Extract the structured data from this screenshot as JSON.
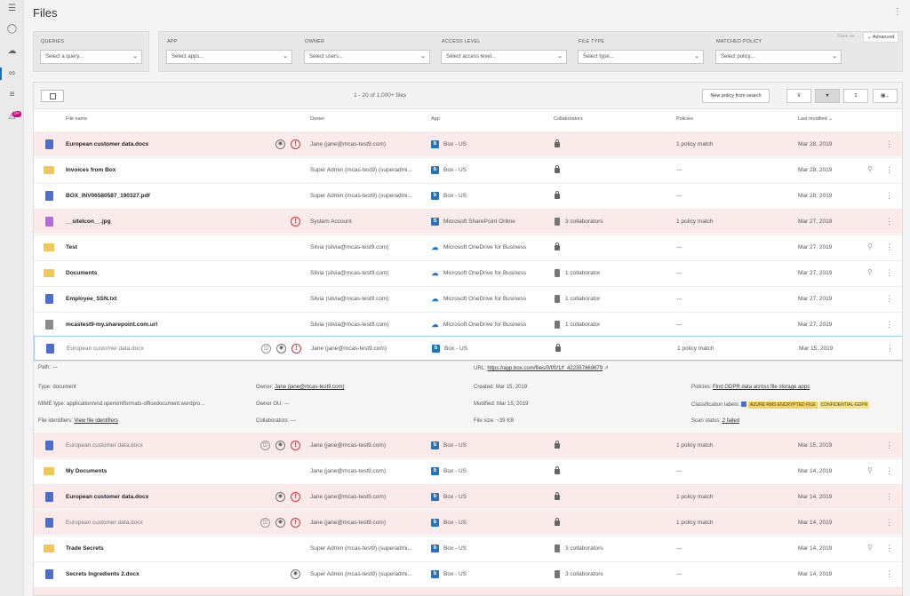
{
  "page": {
    "title": "Files"
  },
  "filters": {
    "queries": {
      "label": "QUERIES",
      "value": "Select a query..."
    },
    "app": {
      "label": "APP",
      "value": "Select apps..."
    },
    "owner": {
      "label": "OWNER",
      "value": "Select users..."
    },
    "access": {
      "label": "ACCESS LEVEL",
      "value": "Select access level..."
    },
    "filetype": {
      "label": "FILE TYPE",
      "value": "Select type..."
    },
    "policy": {
      "label": "MATCHED POLICY",
      "value": "Select policy..."
    },
    "save_as": "Save as",
    "advanced": "Advanced"
  },
  "toolbar": {
    "count": "1 - 20 of 1,000+ files",
    "new_policy": "New policy from search"
  },
  "headers": {
    "file_name": "File name",
    "owner": "Owner",
    "app": "App",
    "collaborators": "Collaborators",
    "policies": "Policies",
    "last_modified": "Last modified"
  },
  "rows": [
    {
      "name": "European customer data.docx",
      "owner": "Jane (jane@mcas-test9.com)",
      "app": "Box - US",
      "collab": "",
      "policies": "1 policy match",
      "modified": "Mar 28, 2019"
    },
    {
      "name": "Invoices from Box",
      "owner": "Super Admin (mcas-test9) (superadmi...",
      "app": "Box - US",
      "collab": "",
      "policies": "---",
      "modified": "Mar 28, 2019"
    },
    {
      "name": "BOX_INV06580587_190327.pdf",
      "owner": "Super Admin (mcas-test9) (superadmi...",
      "app": "Box - US",
      "collab": "",
      "policies": "---",
      "modified": "Mar 28, 2019"
    },
    {
      "name": "__siteIcon__.jpg",
      "owner": "System Account",
      "app": "Microsoft SharePoint Online",
      "collab": "3 collaborators",
      "policies": "1 policy match",
      "modified": "Mar 27, 2019"
    },
    {
      "name": "Test",
      "owner": "Silvia (silvia@mcas-test9.com)",
      "app": "Microsoft OneDrive for Business",
      "collab": "",
      "policies": "---",
      "modified": "Mar 27, 2019"
    },
    {
      "name": "Documents",
      "owner": "Silvia (silvia@mcas-test9.com)",
      "app": "Microsoft OneDrive for Business",
      "collab": "1 collaborator",
      "policies": "---",
      "modified": "Mar 27, 2019"
    },
    {
      "name": "Employee_SSN.txt",
      "owner": "Silvia (silvia@mcas-test9.com)",
      "app": "Microsoft OneDrive for Business",
      "collab": "1 collaborator",
      "policies": "---",
      "modified": "Mar 27, 2019"
    },
    {
      "name": "mcastest9-my.sharepoint.com.url",
      "owner": "Silvia (silvia@mcas-test9.com)",
      "app": "Microsoft OneDrive for Business",
      "collab": "1 collaborator",
      "policies": "---",
      "modified": "Mar 27, 2019"
    },
    {
      "name": "European customer data.docx",
      "owner": "Jane (jane@mcas-test9.com)",
      "app": "Box - US",
      "collab": "",
      "policies": "1 policy match",
      "modified": "Mar 15, 2019"
    },
    {
      "name": "European customer data.docx",
      "owner": "Jane (jane@mcas-test9.com)",
      "app": "Box - US",
      "collab": "",
      "policies": "1 policy match",
      "modified": "Mar 15, 2019"
    },
    {
      "name": "My Documents",
      "owner": "Jane (jane@mcas-test9.com)",
      "app": "Box - US",
      "collab": "",
      "policies": "---",
      "modified": "Mar 14, 2019"
    },
    {
      "name": "European customer data.docx",
      "owner": "Jane (jane@mcas-test9.com)",
      "app": "Box - US",
      "collab": "",
      "policies": "1 policy match",
      "modified": "Mar 14, 2019"
    },
    {
      "name": "European customer data.docx",
      "owner": "Jane (jane@mcas-test9.com)",
      "app": "Box - US",
      "collab": "",
      "policies": "1 policy match",
      "modified": "Mar 14, 2019"
    },
    {
      "name": "Trade Secrets",
      "owner": "Super Admin (mcas-test9) (superadmi...",
      "app": "Box - US",
      "collab": "3 collaborators",
      "policies": "---",
      "modified": "Mar 14, 2019"
    },
    {
      "name": "Secrets Ingredients 2.docx",
      "owner": "Super Admin (mcas-test9) (superadmi...",
      "app": "Box - US",
      "collab": "3 collaborators",
      "policies": "---",
      "modified": "Mar 14, 2019"
    }
  ],
  "detail": {
    "path_label": "Path:",
    "path_value": "---",
    "url_label": "URL:",
    "url_value": "https://app.box.com/files/0/f/0/1/f_422357869679",
    "type_label": "Type:",
    "type_value": "document",
    "owner_label": "Owner:",
    "owner_value": "Jane (jane@mcas-test9.com)",
    "created_label": "Created:",
    "created_value": "Mar 15, 2019",
    "policies_label": "Policies:",
    "policies_value": "Find GDPR data across file storage apps",
    "mime_label": "MIME type:",
    "mime_value": "application/vnd.openxmlformats-officedocument.wordpro...",
    "ou_label": "Owner OU:",
    "ou_value": "---",
    "modified_label": "Modified:",
    "modified_value": "Mar 15, 2019",
    "class_label": "Classification labels:",
    "class_badge1": "AZURE RMS ENCRYPTED FILE",
    "class_badge2": "CONFIDENTIAL-GDPR",
    "fid_label": "File identifiers:",
    "fid_value": "View file identifiers",
    "collab_label": "Collaborators:",
    "collab_value": "---",
    "size_label": "File size:",
    "size_value": "~39 KB",
    "scan_label": "Scan status:",
    "scan_value": "2 failed"
  }
}
